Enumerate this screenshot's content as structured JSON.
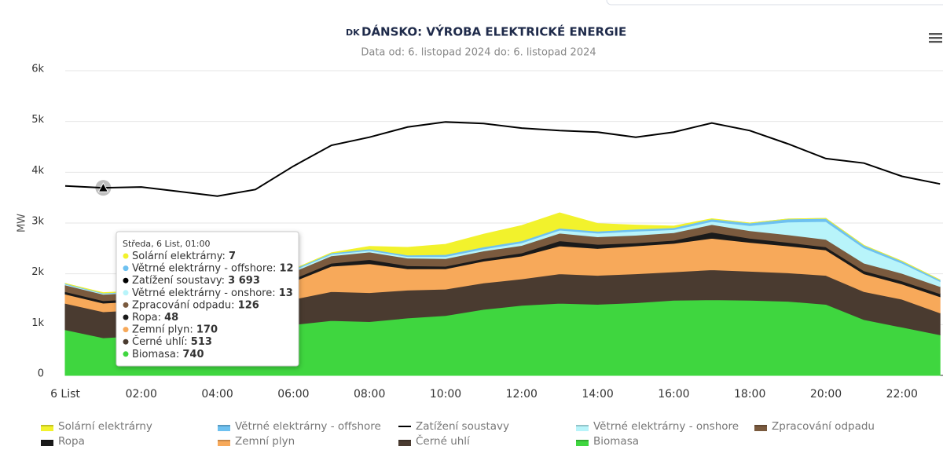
{
  "chart_data": {
    "type": "area",
    "country_code": "DK",
    "title": "DÁNSKO: VÝROBA ELEKTRICKÉ ENERGIE",
    "subtitle": "Data od: 6. listopad 2024 do: 6. listopad 2024",
    "y_label": "MW",
    "categories": [
      "6 List",
      null,
      "02:00",
      null,
      "04:00",
      null,
      "06:00",
      null,
      "08:00",
      null,
      "10:00",
      null,
      "12:00",
      null,
      "14:00",
      null,
      "16:00",
      null,
      "18:00",
      null,
      "20:00",
      null,
      "22:00",
      null
    ],
    "ylim": [
      0,
      6000
    ],
    "yticks": [
      0,
      {
        "value": 1000,
        "label": "1k"
      },
      {
        "value": 2000,
        "label": "2k"
      },
      {
        "value": 3000,
        "label": "3k"
      },
      {
        "value": 4000,
        "label": "4k"
      },
      {
        "value": 5000,
        "label": "5k"
      },
      {
        "value": 6000,
        "label": "6k"
      }
    ],
    "grid": true,
    "series": [
      {
        "name": "Solární elektrárny",
        "color": "#f2f22c",
        "values": [
          0,
          7,
          0,
          0,
          0,
          0,
          0,
          5,
          50,
          150,
          200,
          250,
          300,
          300,
          150,
          80,
          30,
          5,
          0,
          0,
          0,
          0,
          0,
          0
        ]
      },
      {
        "name": "Větrné elektrárny - offshore",
        "color": "#6ec1f0",
        "values": [
          15,
          12,
          12,
          12,
          14,
          16,
          20,
          25,
          30,
          30,
          40,
          40,
          40,
          40,
          40,
          40,
          40,
          50,
          50,
          60,
          60,
          50,
          40,
          30
        ]
      },
      {
        "name": "Zatížení soustavy",
        "color": "#000000",
        "type": "line",
        "values": [
          3730,
          3693,
          3710,
          3620,
          3530,
          3660,
          4120,
          4530,
          4690,
          4890,
          4990,
          4960,
          4870,
          4820,
          4790,
          4690,
          4790,
          4970,
          4820,
          4560,
          4270,
          4180,
          3920,
          3770
        ]
      },
      {
        "name": "Větrné elektrárny - onshore",
        "color": "#b8f4fa",
        "values": [
          15,
          13,
          13,
          15,
          20,
          25,
          30,
          30,
          30,
          30,
          40,
          40,
          50,
          60,
          70,
          80,
          60,
          60,
          100,
          250,
          350,
          300,
          200,
          100
        ]
      },
      {
        "name": "Zpracování odpadu",
        "color": "#7a5a3e",
        "values": [
          130,
          126,
          126,
          128,
          130,
          135,
          140,
          145,
          150,
          150,
          150,
          150,
          150,
          150,
          150,
          150,
          150,
          150,
          150,
          150,
          150,
          150,
          150,
          140
        ]
      },
      {
        "name": "Ropa",
        "color": "#1a1a1a",
        "values": [
          50,
          48,
          48,
          48,
          48,
          50,
          50,
          60,
          80,
          60,
          50,
          50,
          60,
          100,
          80,
          60,
          60,
          120,
          80,
          70,
          60,
          60,
          60,
          60
        ]
      },
      {
        "name": "Zemní plyn",
        "color": "#f7a95a",
        "values": [
          180,
          170,
          170,
          180,
          200,
          250,
          350,
          500,
          570,
          420,
          400,
          430,
          450,
          550,
          530,
          550,
          560,
          620,
          570,
          530,
          500,
          350,
          300,
          320
        ]
      },
      {
        "name": "Černé uhlí",
        "color": "#4a3b30",
        "values": [
          520,
          513,
          513,
          520,
          530,
          520,
          500,
          570,
          570,
          550,
          520,
          520,
          520,
          580,
          570,
          570,
          560,
          590,
          570,
          560,
          570,
          550,
          550,
          430
        ]
      },
      {
        "name": "Biomasa",
        "color": "#3fd63f",
        "values": [
          900,
          740,
          780,
          800,
          850,
          950,
          1000,
          1080,
          1060,
          1130,
          1180,
          1300,
          1380,
          1420,
          1400,
          1430,
          1480,
          1490,
          1480,
          1460,
          1400,
          1100,
          950,
          800
        ]
      }
    ],
    "tooltip": {
      "title": "Středa, 6 List, 01:00",
      "items": [
        {
          "label": "Solární elektrárny",
          "value": "7"
        },
        {
          "label": "Větrné elektrárny - offshore",
          "value": "12"
        },
        {
          "label": "Zatížení soustavy",
          "value": "3 693"
        },
        {
          "label": "Větrné elektrárny - onshore",
          "value": "13"
        },
        {
          "label": "Zpracování odpadu",
          "value": "126"
        },
        {
          "label": "Ropa",
          "value": "48"
        },
        {
          "label": "Zemní plyn",
          "value": "170"
        },
        {
          "label": "Černé uhlí",
          "value": "513"
        },
        {
          "label": "Biomasa",
          "value": "740"
        }
      ]
    }
  }
}
